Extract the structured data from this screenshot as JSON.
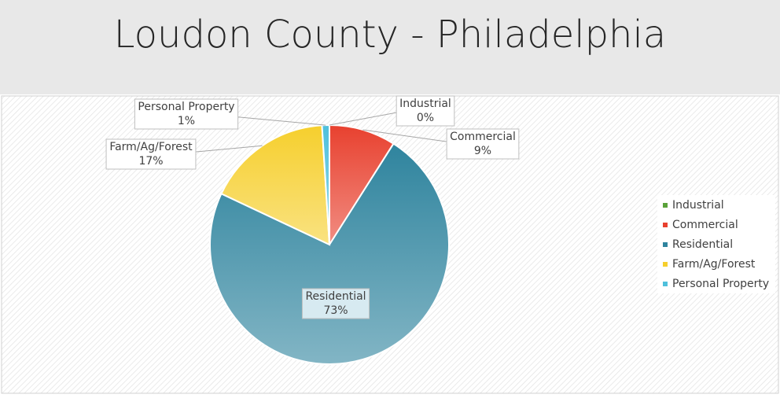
{
  "chart_data": {
    "type": "pie",
    "title": "Loudon County - Philadelphia",
    "categories": [
      "Industrial",
      "Commercial",
      "Residential",
      "Farm/Ag/Forest",
      "Personal Property"
    ],
    "values": [
      0,
      9,
      73,
      17,
      1
    ],
    "value_labels": [
      "0%",
      "9%",
      "73%",
      "17%",
      "1%"
    ],
    "colors": [
      "#5aa23a",
      "#e8412f",
      "#2f849e",
      "#f6cf2d",
      "#4fc0dc"
    ],
    "legend": "right"
  }
}
